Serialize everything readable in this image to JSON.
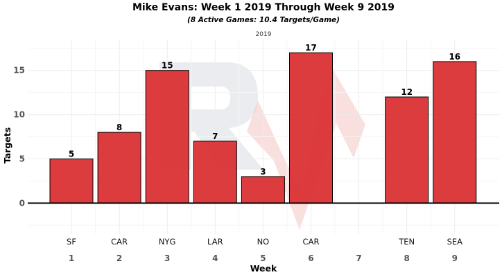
{
  "chart_data": {
    "type": "bar",
    "title": "Mike Evans: Week 1 2019 Through Week 9 2019",
    "subtitle": "(8 Active Games: 10.4 Targets/Game)",
    "caption": "2019",
    "xlabel": "Week",
    "ylabel": "Targets",
    "ylim": [
      -3.5,
      18.5
    ],
    "yticks": [
      0,
      5,
      10,
      15
    ],
    "categories": [
      "1",
      "2",
      "3",
      "4",
      "5",
      "6",
      "7",
      "8",
      "9"
    ],
    "opponents": [
      "SF",
      "CAR",
      "NYG",
      "LAR",
      "NO",
      "CAR",
      "",
      "TEN",
      "SEA"
    ],
    "values": [
      5,
      8,
      15,
      7,
      3,
      17,
      null,
      12,
      16
    ],
    "bar_color": "#d92b2e",
    "grid": true,
    "legend": "none"
  }
}
